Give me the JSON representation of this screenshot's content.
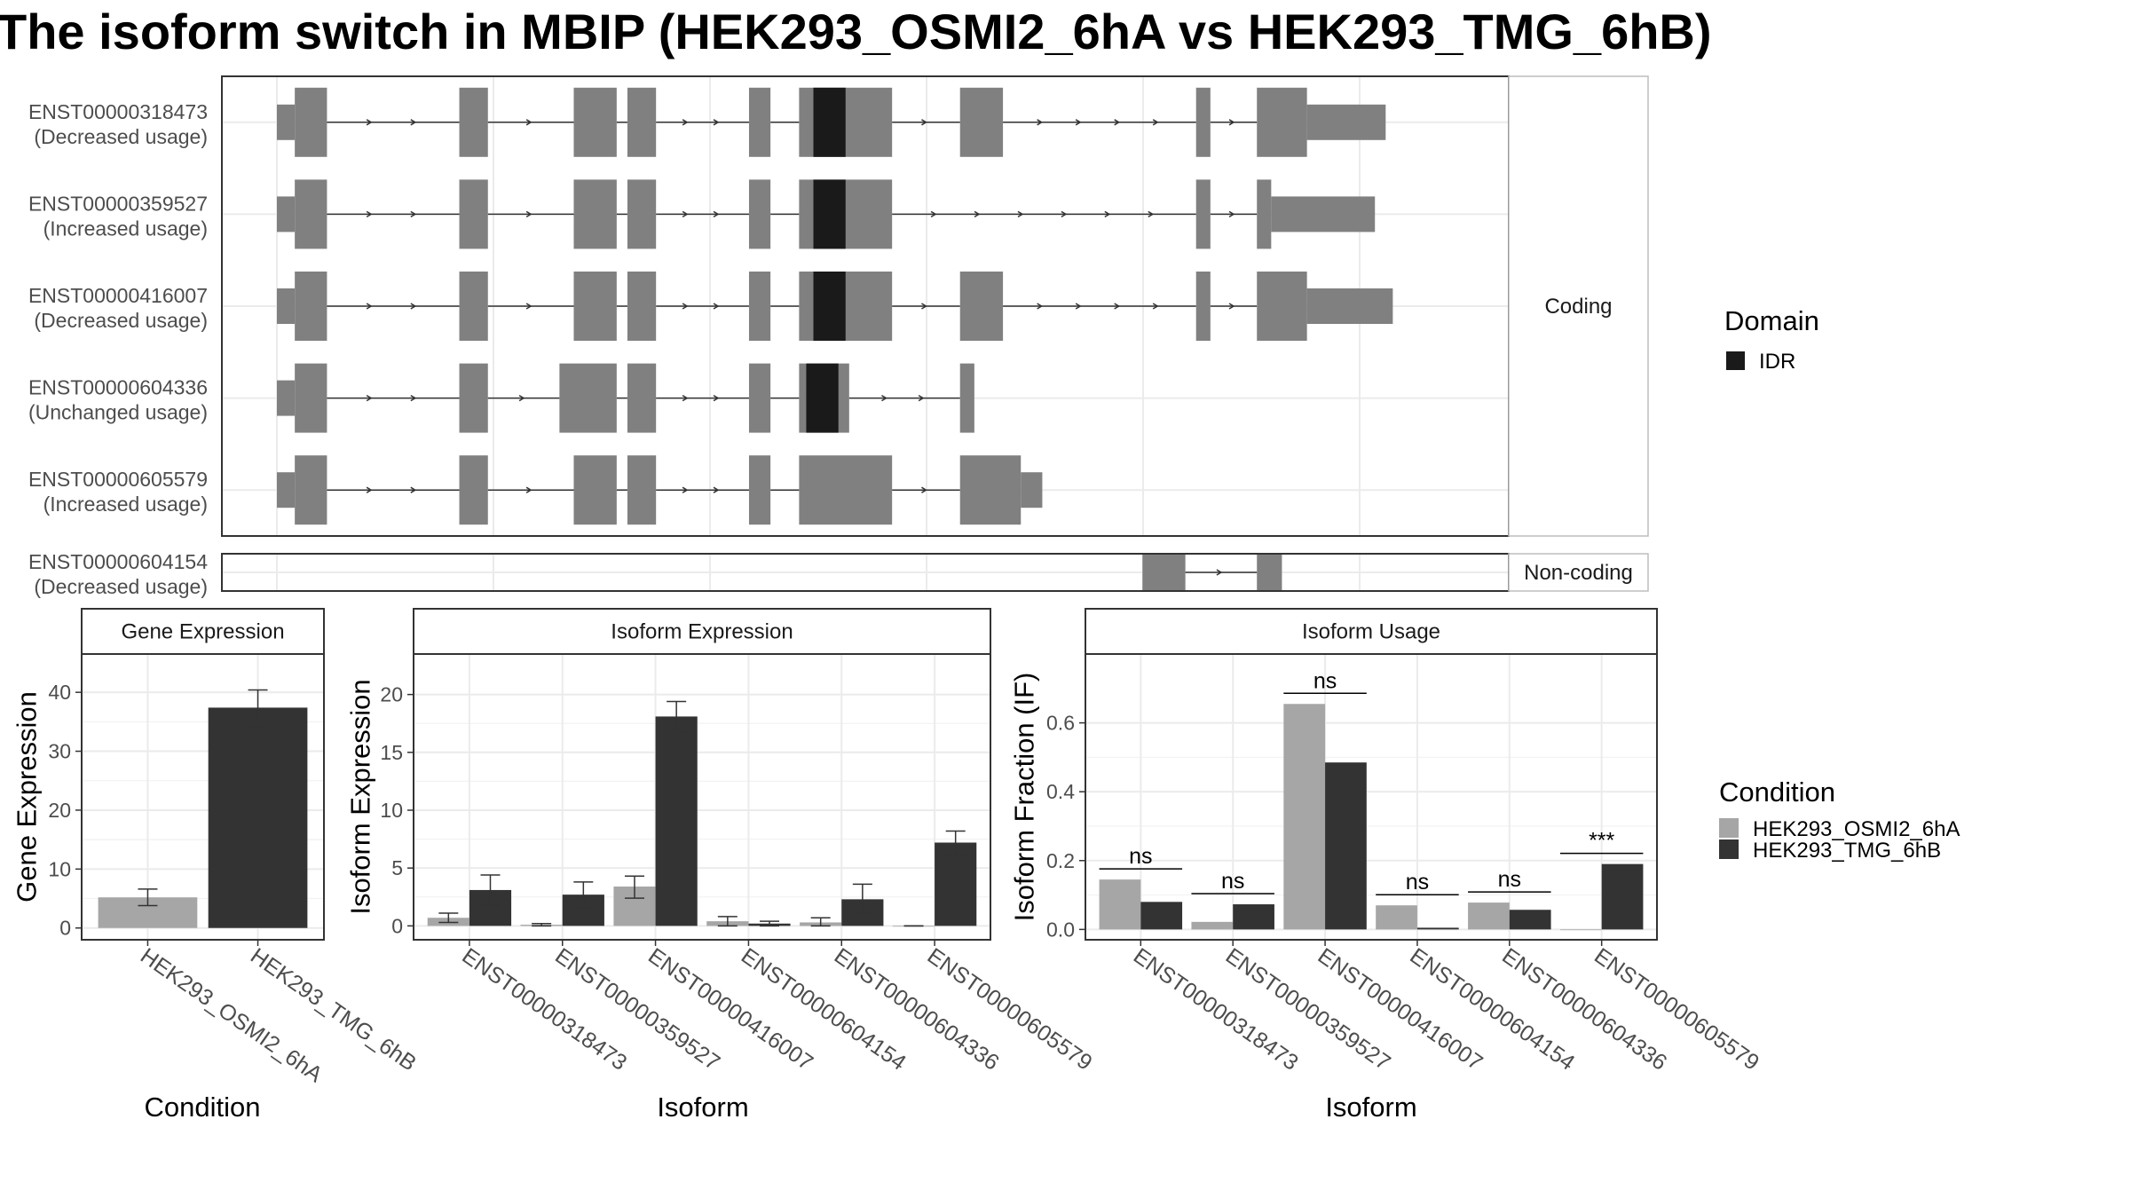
{
  "title": "The isoform switch in MBIP (HEK293_OSMI2_6hA vs HEK293_TMG_6hB)",
  "colors": {
    "exon": "#808080",
    "idr": "#1a1a1a",
    "cond1": "#a6a6a6",
    "cond2": "#333333",
    "grid": "#ebebeb",
    "strip_bg": "#ffffff",
    "border": "#333333"
  },
  "structure": {
    "facets": [
      "Coding",
      "Non-coding"
    ],
    "transcripts": [
      {
        "id": "ENST00000318473",
        "usage": "(Decreased usage)",
        "facet": "Coding",
        "exons": [
          [
            0,
            5,
            "thin"
          ],
          [
            5,
            14,
            "thick"
          ],
          [
            51,
            59,
            "thick"
          ],
          [
            83,
            95,
            "thick"
          ],
          [
            98,
            106,
            "thick"
          ],
          [
            132,
            138,
            "thick"
          ],
          [
            146,
            172,
            "thick"
          ],
          [
            191,
            203,
            "thick"
          ],
          [
            257,
            261,
            "thick"
          ],
          [
            274,
            288,
            "thick"
          ],
          [
            288,
            310,
            "thin"
          ]
        ],
        "idr": [
          150,
          159
        ]
      },
      {
        "id": "ENST00000359527",
        "usage": "(Increased usage)",
        "facet": "Coding",
        "exons": [
          [
            0,
            5,
            "thin"
          ],
          [
            5,
            14,
            "thick"
          ],
          [
            51,
            59,
            "thick"
          ],
          [
            83,
            95,
            "thick"
          ],
          [
            98,
            106,
            "thick"
          ],
          [
            132,
            138,
            "thick"
          ],
          [
            146,
            172,
            "thick"
          ],
          [
            257,
            261,
            "thick"
          ],
          [
            274,
            278,
            "thick"
          ],
          [
            278,
            307,
            "thin"
          ]
        ],
        "idr": [
          150,
          159
        ]
      },
      {
        "id": "ENST00000416007",
        "usage": "(Decreased usage)",
        "facet": "Coding",
        "exons": [
          [
            0,
            5,
            "thin"
          ],
          [
            5,
            14,
            "thick"
          ],
          [
            51,
            59,
            "thick"
          ],
          [
            83,
            95,
            "thick"
          ],
          [
            98,
            106,
            "thick"
          ],
          [
            132,
            138,
            "thick"
          ],
          [
            146,
            172,
            "thick"
          ],
          [
            191,
            203,
            "thick"
          ],
          [
            257,
            261,
            "thick"
          ],
          [
            274,
            288,
            "thick"
          ],
          [
            288,
            312,
            "thin"
          ]
        ],
        "idr": [
          150,
          159
        ]
      },
      {
        "id": "ENST00000604336",
        "usage": "(Unchanged usage)",
        "facet": "Coding",
        "exons": [
          [
            0,
            5,
            "thin"
          ],
          [
            5,
            14,
            "thick"
          ],
          [
            51,
            59,
            "thick"
          ],
          [
            79,
            95,
            "thick"
          ],
          [
            98,
            106,
            "thick"
          ],
          [
            132,
            138,
            "thick"
          ],
          [
            146,
            160,
            "thick"
          ],
          [
            191,
            195,
            "thick"
          ]
        ],
        "idr": [
          148,
          157
        ]
      },
      {
        "id": "ENST00000605579",
        "usage": "(Increased usage)",
        "facet": "Coding",
        "exons": [
          [
            0,
            5,
            "thin"
          ],
          [
            5,
            14,
            "thick"
          ],
          [
            51,
            59,
            "thick"
          ],
          [
            83,
            95,
            "thick"
          ],
          [
            98,
            106,
            "thick"
          ],
          [
            132,
            138,
            "thick"
          ],
          [
            146,
            172,
            "thick"
          ],
          [
            191,
            208,
            "thick"
          ],
          [
            208,
            214,
            "thin"
          ]
        ],
        "idr": null
      },
      {
        "id": "ENST00000604154",
        "usage": "(Decreased usage)",
        "facet": "Non-coding",
        "exons": [
          [
            242,
            254,
            "thick"
          ],
          [
            274,
            281,
            "thick"
          ]
        ],
        "idr": null
      }
    ],
    "legend": {
      "title": "Domain",
      "items": [
        {
          "label": "IDR",
          "color": "#1a1a1a"
        }
      ]
    }
  },
  "chart_data": [
    {
      "type": "bar",
      "title": "Gene Expression",
      "xlabel": "Condition",
      "ylabel": "Gene Expression",
      "categories": [
        "HEK293_OSMI2_6hA",
        "HEK293_TMG_6hB"
      ],
      "values": [
        5.2,
        37.4
      ],
      "errors": [
        [
          3.8,
          6.6
        ],
        [
          34.4,
          40.4
        ]
      ],
      "ylim": [
        -2,
        46.5
      ],
      "yticks": [
        0,
        10,
        20,
        30,
        40
      ]
    },
    {
      "type": "bar",
      "title": "Isoform Expression",
      "xlabel": "Isoform",
      "ylabel": "Isoform Expression",
      "categories": [
        "ENST00000318473",
        "ENST00000359527",
        "ENST00000416007",
        "ENST00000604154",
        "ENST00000604336",
        "ENST00000605579"
      ],
      "series": [
        {
          "name": "HEK293_OSMI2_6hA",
          "values": [
            0.7,
            0.1,
            3.4,
            0.4,
            0.3,
            0.0
          ],
          "errors": [
            [
              0.3,
              1.1
            ],
            [
              0.0,
              0.2
            ],
            [
              2.4,
              4.3
            ],
            [
              0.0,
              0.8
            ],
            [
              0.0,
              0.7
            ],
            [
              0.0,
              0.0
            ]
          ]
        },
        {
          "name": "HEK293_TMG_6hB",
          "values": [
            3.1,
            2.7,
            18.1,
            0.2,
            2.3,
            7.2
          ],
          "errors": [
            [
              1.8,
              4.4
            ],
            [
              1.6,
              3.8
            ],
            [
              16.8,
              19.4
            ],
            [
              0.0,
              0.4
            ],
            [
              1.0,
              3.6
            ],
            [
              6.2,
              8.2
            ]
          ]
        }
      ],
      "ylim": [
        -1.2,
        23.5
      ],
      "yticks": [
        0,
        5,
        10,
        15,
        20
      ]
    },
    {
      "type": "bar",
      "title": "Isoform Usage",
      "xlabel": "Isoform",
      "ylabel": "Isoform Fraction (IF)",
      "categories": [
        "ENST00000318473",
        "ENST00000359527",
        "ENST00000416007",
        "ENST00000604154",
        "ENST00000604336",
        "ENST00000605579"
      ],
      "series": [
        {
          "name": "HEK293_OSMI2_6hA",
          "values": [
            0.145,
            0.022,
            0.655,
            0.07,
            0.078,
            0.0
          ]
        },
        {
          "name": "HEK293_TMG_6hB",
          "values": [
            0.08,
            0.073,
            0.485,
            0.005,
            0.057,
            0.19
          ]
        }
      ],
      "significance": [
        "ns",
        "ns",
        "ns",
        "ns",
        "ns",
        "***"
      ],
      "ylim": [
        -0.03,
        0.8
      ],
      "yticks": [
        0.0,
        0.2,
        0.4,
        0.6
      ],
      "ytick_labels": [
        "0.0",
        "0.2",
        "0.4",
        "0.6"
      ]
    }
  ],
  "condition_legend": {
    "title": "Condition",
    "items": [
      {
        "label": "HEK293_OSMI2_6hA",
        "color": "#a6a6a6"
      },
      {
        "label": "HEK293_TMG_6hB",
        "color": "#333333"
      }
    ]
  }
}
